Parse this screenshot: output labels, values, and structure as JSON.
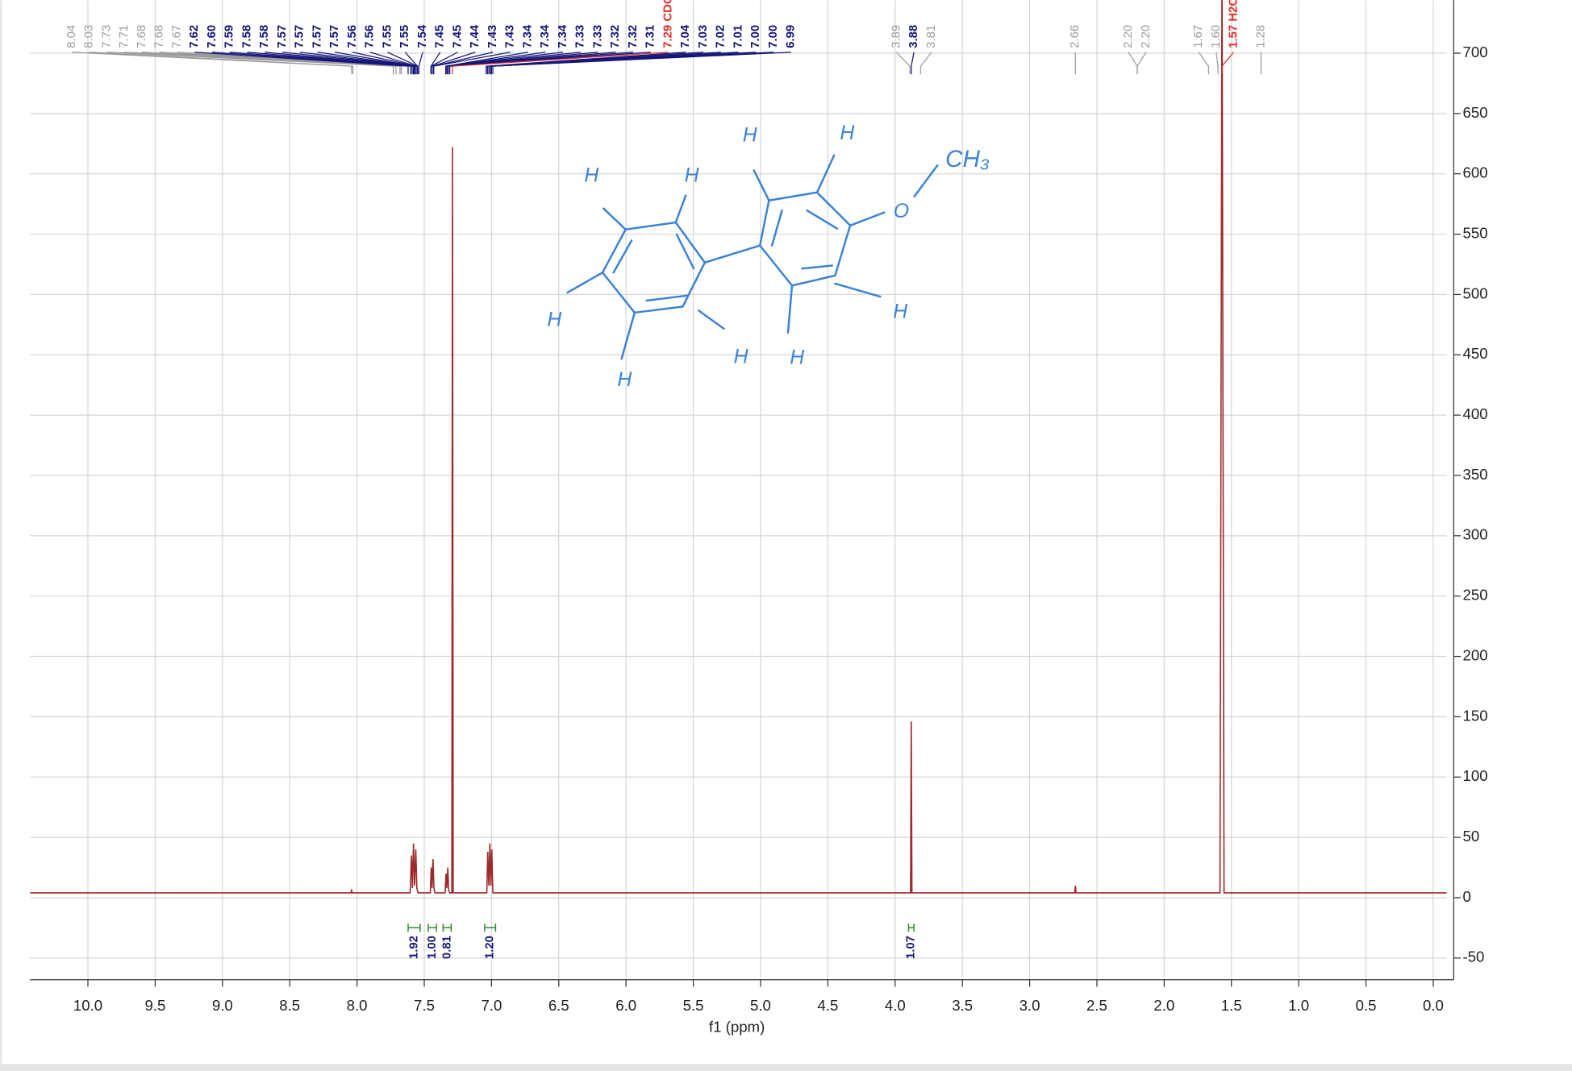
{
  "chart_data": {
    "type": "nmr",
    "x_label": "f1 (ppm)",
    "xlim": [
      10.43,
      -0.1
    ],
    "ylim": [
      -68,
      744
    ],
    "grid": true,
    "xticks": [
      {
        "value": 10.0,
        "label": "10.0"
      },
      {
        "value": 9.5,
        "label": "9.5"
      },
      {
        "value": 9.0,
        "label": "9.0"
      },
      {
        "value": 8.5,
        "label": "8.5"
      },
      {
        "value": 8.0,
        "label": "8.0"
      },
      {
        "value": 7.5,
        "label": "7.5"
      },
      {
        "value": 7.0,
        "label": "7.0"
      },
      {
        "value": 6.5,
        "label": "6.5"
      },
      {
        "value": 6.0,
        "label": "6.0"
      },
      {
        "value": 5.5,
        "label": "5.5"
      },
      {
        "value": 5.0,
        "label": "5.0"
      },
      {
        "value": 4.5,
        "label": "4.5"
      },
      {
        "value": 4.0,
        "label": "4.0"
      },
      {
        "value": 3.5,
        "label": "3.5"
      },
      {
        "value": 3.0,
        "label": "3.0"
      },
      {
        "value": 2.5,
        "label": "2.5"
      },
      {
        "value": 2.0,
        "label": "2.0"
      },
      {
        "value": 1.5,
        "label": "1.5"
      },
      {
        "value": 1.0,
        "label": "1.0"
      },
      {
        "value": 0.5,
        "label": "0.5"
      },
      {
        "value": 0.0,
        "label": "0.0"
      }
    ],
    "yticks": [
      -50,
      0,
      50,
      100,
      150,
      200,
      250,
      300,
      350,
      400,
      450,
      500,
      550,
      600,
      650,
      700
    ],
    "x": [
      10.43,
      8.045,
      8.04,
      8.035,
      7.605,
      7.595,
      7.588,
      7.58,
      7.572,
      7.563,
      7.555,
      7.546,
      7.455,
      7.448,
      7.442,
      7.435,
      7.428,
      7.42,
      7.345,
      7.338,
      7.332,
      7.325,
      7.318,
      7.31,
      7.295,
      7.29,
      7.285,
      7.035,
      7.028,
      7.02,
      7.012,
      7.005,
      6.998,
      6.99,
      3.885,
      3.88,
      3.875,
      2.665,
      2.66,
      2.655,
      1.585,
      1.57,
      1.555,
      -0.1
    ],
    "series": [
      {
        "color": "#9c2a2a",
        "values": [
          4,
          4,
          6,
          4,
          4,
          35,
          8,
          45,
          10,
          40,
          8,
          4,
          4,
          25,
          8,
          32,
          8,
          4,
          4,
          20,
          8,
          25,
          6,
          4,
          4,
          622,
          4,
          4,
          38,
          10,
          45,
          10,
          40,
          4,
          4,
          146,
          4,
          4,
          10,
          4,
          4,
          780,
          4,
          4
        ]
      }
    ],
    "peak_labels": [
      {
        "value": 8.04,
        "label": "8.04",
        "color": "#9a9a9a"
      },
      {
        "value": 8.03,
        "label": "8.03",
        "color": "#9a9a9a"
      },
      {
        "value": 7.73,
        "label": "7.73",
        "color": "#9a9a9a"
      },
      {
        "value": 7.71,
        "label": "7.71",
        "color": "#9a9a9a"
      },
      {
        "value": 7.68,
        "label": "7.68",
        "color": "#9a9a9a"
      },
      {
        "value": 7.68,
        "label": "7.68",
        "color": "#9a9a9a"
      },
      {
        "value": 7.67,
        "label": "7.67",
        "color": "#9a9a9a"
      },
      {
        "value": 7.62,
        "label": "7.62",
        "color": "#16167a"
      },
      {
        "value": 7.6,
        "label": "7.60",
        "color": "#16167a"
      },
      {
        "value": 7.59,
        "label": "7.59",
        "color": "#16167a"
      },
      {
        "value": 7.58,
        "label": "7.58",
        "color": "#16167a"
      },
      {
        "value": 7.58,
        "label": "7.58",
        "color": "#16167a"
      },
      {
        "value": 7.57,
        "label": "7.57",
        "color": "#16167a"
      },
      {
        "value": 7.57,
        "label": "7.57",
        "color": "#16167a"
      },
      {
        "value": 7.57,
        "label": "7.57",
        "color": "#16167a"
      },
      {
        "value": 7.57,
        "label": "7.57",
        "color": "#16167a"
      },
      {
        "value": 7.56,
        "label": "7.56",
        "color": "#16167a"
      },
      {
        "value": 7.56,
        "label": "7.56",
        "color": "#16167a"
      },
      {
        "value": 7.55,
        "label": "7.55",
        "color": "#16167a"
      },
      {
        "value": 7.55,
        "label": "7.55",
        "color": "#16167a"
      },
      {
        "value": 7.54,
        "label": "7.54",
        "color": "#16167a"
      },
      {
        "value": 7.45,
        "label": "7.45",
        "color": "#16167a"
      },
      {
        "value": 7.45,
        "label": "7.45",
        "color": "#16167a"
      },
      {
        "value": 7.44,
        "label": "7.44",
        "color": "#16167a"
      },
      {
        "value": 7.43,
        "label": "7.43",
        "color": "#16167a"
      },
      {
        "value": 7.43,
        "label": "7.43",
        "color": "#16167a"
      },
      {
        "value": 7.34,
        "label": "7.34",
        "color": "#16167a"
      },
      {
        "value": 7.34,
        "label": "7.34",
        "color": "#16167a"
      },
      {
        "value": 7.34,
        "label": "7.34",
        "color": "#16167a"
      },
      {
        "value": 7.33,
        "label": "7.33",
        "color": "#16167a"
      },
      {
        "value": 7.33,
        "label": "7.33",
        "color": "#16167a"
      },
      {
        "value": 7.32,
        "label": "7.32",
        "color": "#16167a"
      },
      {
        "value": 7.32,
        "label": "7.32",
        "color": "#16167a"
      },
      {
        "value": 7.31,
        "label": "7.31",
        "color": "#16167a"
      },
      {
        "value": 7.29,
        "label": "7.29 CDC",
        "color": "#e0302a"
      },
      {
        "value": 7.04,
        "label": "7.04",
        "color": "#16167a"
      },
      {
        "value": 7.03,
        "label": "7.03",
        "color": "#16167a"
      },
      {
        "value": 7.02,
        "label": "7.02",
        "color": "#16167a"
      },
      {
        "value": 7.01,
        "label": "7.01",
        "color": "#16167a"
      },
      {
        "value": 7.0,
        "label": "7.00",
        "color": "#16167a"
      },
      {
        "value": 7.0,
        "label": "7.00",
        "color": "#16167a"
      },
      {
        "value": 6.99,
        "label": "6.99",
        "color": "#16167a"
      },
      {
        "value": 3.89,
        "label": "3.89",
        "color": "#9a9a9a"
      },
      {
        "value": 3.88,
        "label": "3.88",
        "color": "#16167a"
      },
      {
        "value": 3.81,
        "label": "3.81",
        "color": "#9a9a9a"
      },
      {
        "value": 2.66,
        "label": "2.66",
        "color": "#9a9a9a"
      },
      {
        "value": 2.2,
        "label": "2.20",
        "color": "#9a9a9a"
      },
      {
        "value": 2.2,
        "label": "2.20",
        "color": "#9a9a9a"
      },
      {
        "value": 1.67,
        "label": "1.67",
        "color": "#9a9a9a"
      },
      {
        "value": 1.6,
        "label": "1.60",
        "color": "#9a9a9a"
      },
      {
        "value": 1.57,
        "label": "1.57 H2C",
        "color": "#e0302a"
      },
      {
        "value": 1.28,
        "label": "1.28",
        "color": "#9a9a9a"
      }
    ],
    "integrals": {
      "from": [
        7.62,
        7.47,
        7.36,
        7.05,
        3.9
      ],
      "to": [
        7.53,
        7.41,
        7.3,
        6.97,
        3.86
      ],
      "values": [
        1.92,
        1.0,
        0.81,
        1.2,
        1.07
      ],
      "value_labels": [
        "1.92",
        "1.00",
        "0.81",
        "1.20",
        "1.07"
      ],
      "color": "#2e8b2e",
      "label_color": "#16167a"
    }
  },
  "drawing": {
    "labels": [
      "H",
      "H",
      "H",
      "H",
      "H",
      "H",
      "H",
      "H",
      "H",
      "O",
      "CH₃"
    ]
  }
}
